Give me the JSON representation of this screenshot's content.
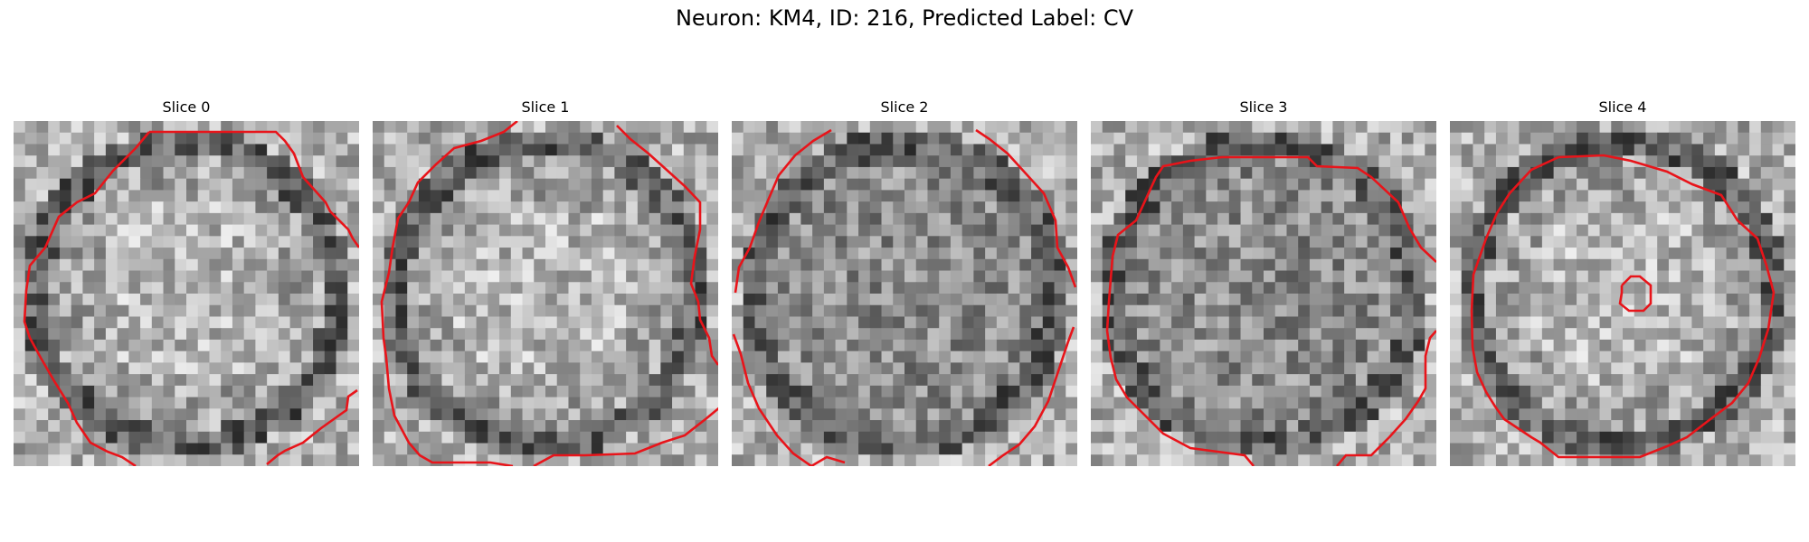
{
  "figure": {
    "title": "Neuron: KM4, ID: 216, Predicted Label: CV",
    "contour_color": "#e8141a"
  },
  "panels": [
    {
      "title": "Slice 0",
      "seed": 11,
      "bright_center": true
    },
    {
      "title": "Slice 1",
      "seed": 23,
      "bright_center": true
    },
    {
      "title": "Slice 2",
      "seed": 37,
      "bright_center": false
    },
    {
      "title": "Slice 3",
      "seed": 41,
      "bright_center": false
    },
    {
      "title": "Slice 4",
      "seed": 53,
      "bright_center": true
    }
  ]
}
